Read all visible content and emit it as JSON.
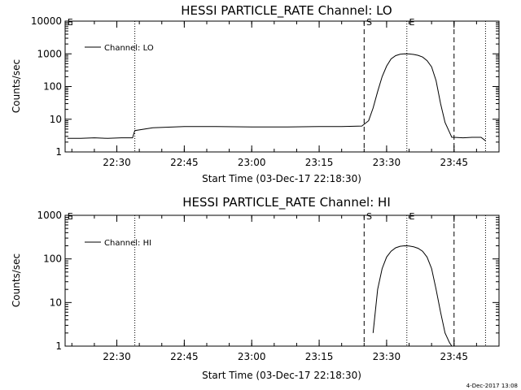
{
  "footer": {
    "timestamp": "4-Dec-2017 13:08"
  },
  "chart_data": [
    {
      "type": "line",
      "title": "HESSI PARTICLE_RATE Channel: LO",
      "xlabel": "Start Time (03-Dec-17 22:18:30)",
      "ylabel": "Counts/sec",
      "yscale": "log",
      "ylim": [
        1,
        10000
      ],
      "y_ticks": [
        1,
        10,
        100,
        1000,
        10000
      ],
      "y_tick_labels": [
        "1",
        "10",
        "100",
        "1000",
        "10000"
      ],
      "xlim": [
        "22:18:30",
        "23:55:00"
      ],
      "x_ticks": [
        "22:30",
        "22:45",
        "23:00",
        "23:15",
        "23:30",
        "23:45"
      ],
      "legend": {
        "position": "top-left",
        "entries": [
          "Channel: LO"
        ]
      },
      "markers": {
        "vertical_dotted": [
          "22:34:00",
          "23:34:30",
          "23:52:00"
        ],
        "vertical_dashed": [
          "23:25:00",
          "23:45:00"
        ],
        "letters": [
          {
            "label": "E",
            "x": "22:19:00"
          },
          {
            "label": "S",
            "x": "23:25:30"
          },
          {
            "label": "E",
            "x": "23:35:00"
          }
        ]
      },
      "series": [
        {
          "name": "Channel: LO",
          "x": [
            "22:19:00",
            "22:22:00",
            "22:25:00",
            "22:28:00",
            "22:31:00",
            "22:33:30",
            "22:34:00",
            "22:38:00",
            "22:45:00",
            "22:52:00",
            "23:00:00",
            "23:08:00",
            "23:15:00",
            "23:20:00",
            "23:24:30",
            "23:26:00",
            "23:27:00",
            "23:28:00",
            "23:29:00",
            "23:30:00",
            "23:31:00",
            "23:32:00",
            "23:33:00",
            "23:34:00",
            "23:35:00",
            "23:36:00",
            "23:37:00",
            "23:38:00",
            "23:39:00",
            "23:40:00",
            "23:41:00",
            "23:42:00",
            "23:43:00",
            "23:44:00",
            "23:44:30",
            "23:45:00",
            "23:47:00",
            "23:49:00",
            "23:51:00",
            "23:52:00"
          ],
          "y": [
            2.6,
            2.6,
            2.7,
            2.6,
            2.7,
            2.7,
            4.5,
            5.5,
            6,
            6,
            5.8,
            5.8,
            6,
            6,
            6.2,
            9,
            22,
            70,
            200,
            420,
            700,
            880,
            970,
            1000,
            990,
            960,
            900,
            800,
            620,
            400,
            150,
            30,
            8,
            4,
            2.8,
            2.8,
            2.7,
            2.8,
            2.8,
            2.2
          ]
        }
      ]
    },
    {
      "type": "line",
      "title": "HESSI PARTICLE_RATE Channel: HI",
      "xlabel": "Start Time (03-Dec-17 22:18:30)",
      "ylabel": "Counts/sec",
      "yscale": "log",
      "ylim": [
        1,
        1000
      ],
      "y_ticks": [
        1,
        10,
        100,
        1000
      ],
      "y_tick_labels": [
        "1",
        "10",
        "100",
        "1000"
      ],
      "xlim": [
        "22:18:30",
        "23:55:00"
      ],
      "x_ticks": [
        "22:30",
        "22:45",
        "23:00",
        "23:15",
        "23:30",
        "23:45"
      ],
      "legend": {
        "position": "top-left",
        "entries": [
          "Channel: HI"
        ]
      },
      "markers": {
        "vertical_dotted": [
          "22:34:00",
          "23:34:30",
          "23:52:00"
        ],
        "vertical_dashed": [
          "23:25:00",
          "23:45:00"
        ],
        "letters": [
          {
            "label": "E",
            "x": "22:19:00"
          },
          {
            "label": "S",
            "x": "23:25:30"
          },
          {
            "label": "E",
            "x": "23:35:00"
          }
        ]
      },
      "series": [
        {
          "name": "Channel: HI",
          "x": [
            "23:27:00",
            "23:28:00",
            "23:29:00",
            "23:30:00",
            "23:31:00",
            "23:32:00",
            "23:33:00",
            "23:34:00",
            "23:35:00",
            "23:36:00",
            "23:37:00",
            "23:38:00",
            "23:39:00",
            "23:40:00",
            "23:41:00",
            "23:42:00",
            "23:43:00",
            "23:44:00",
            "23:44:30"
          ],
          "y": [
            2,
            20,
            60,
            110,
            150,
            180,
            195,
            200,
            198,
            190,
            175,
            150,
            110,
            60,
            20,
            6,
            2,
            1.2,
            1
          ]
        }
      ]
    }
  ]
}
